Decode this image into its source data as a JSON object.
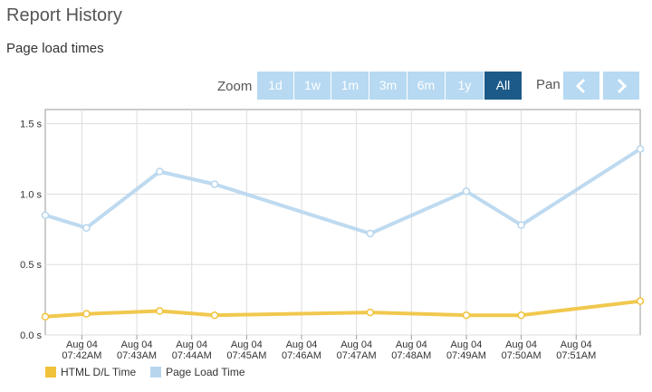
{
  "page": {
    "title": "Report History",
    "section_title": "Page load times"
  },
  "toolbar": {
    "zoom_label": "Zoom",
    "zoom_buttons": [
      "1d",
      "1w",
      "1m",
      "3m",
      "6m",
      "1y",
      "All"
    ],
    "active_zoom": "All",
    "pan_label": "Pan",
    "pan_left_icon": "chevron-left-icon",
    "pan_right_icon": "chevron-right-icon"
  },
  "colors": {
    "page_load": "#b7d6ee",
    "html_dl": "#f0c23b",
    "button_bg": "#b7d9f2",
    "button_active": "#1c5a89"
  },
  "chart_data": {
    "type": "line",
    "title": "",
    "ylabel": "",
    "ylim": [
      0,
      1.6
    ],
    "yticks": [
      0,
      0.5,
      1.0,
      1.5
    ],
    "ytick_labels": [
      "0.0 s",
      "0.5 s",
      "1.0 s",
      "1.5 s"
    ],
    "x_tick_labels": [
      [
        "Aug 04",
        "07:42AM"
      ],
      [
        "Aug 04",
        "07:43AM"
      ],
      [
        "Aug 04",
        "07:44AM"
      ],
      [
        "Aug 04",
        "07:45AM"
      ],
      [
        "Aug 04",
        "07:46AM"
      ],
      [
        "Aug 04",
        "07:47AM"
      ],
      [
        "Aug 04",
        "07:48AM"
      ],
      [
        "Aug 04",
        "07:49AM"
      ],
      [
        "Aug 04",
        "07:50AM"
      ],
      [
        "Aug 04",
        "07:51AM"
      ]
    ],
    "xlim": [
      "07:41:20",
      "07:52:10"
    ],
    "x": [
      "07:41:20",
      "07:42:05",
      "07:43:25",
      "07:44:25",
      "07:47:15",
      "07:49:00",
      "07:50:00",
      "07:52:10"
    ],
    "series": [
      {
        "name": "HTML D/L Time",
        "color": "#f0c23b",
        "values": [
          0.13,
          0.15,
          0.17,
          0.14,
          0.16,
          0.14,
          0.14,
          0.24
        ]
      },
      {
        "name": "Page Load Time",
        "color": "#b7d6ee",
        "values": [
          0.85,
          0.76,
          1.16,
          1.07,
          0.72,
          1.02,
          0.78,
          1.32
        ]
      }
    ],
    "grid": true,
    "legend_position": "bottom-left"
  }
}
